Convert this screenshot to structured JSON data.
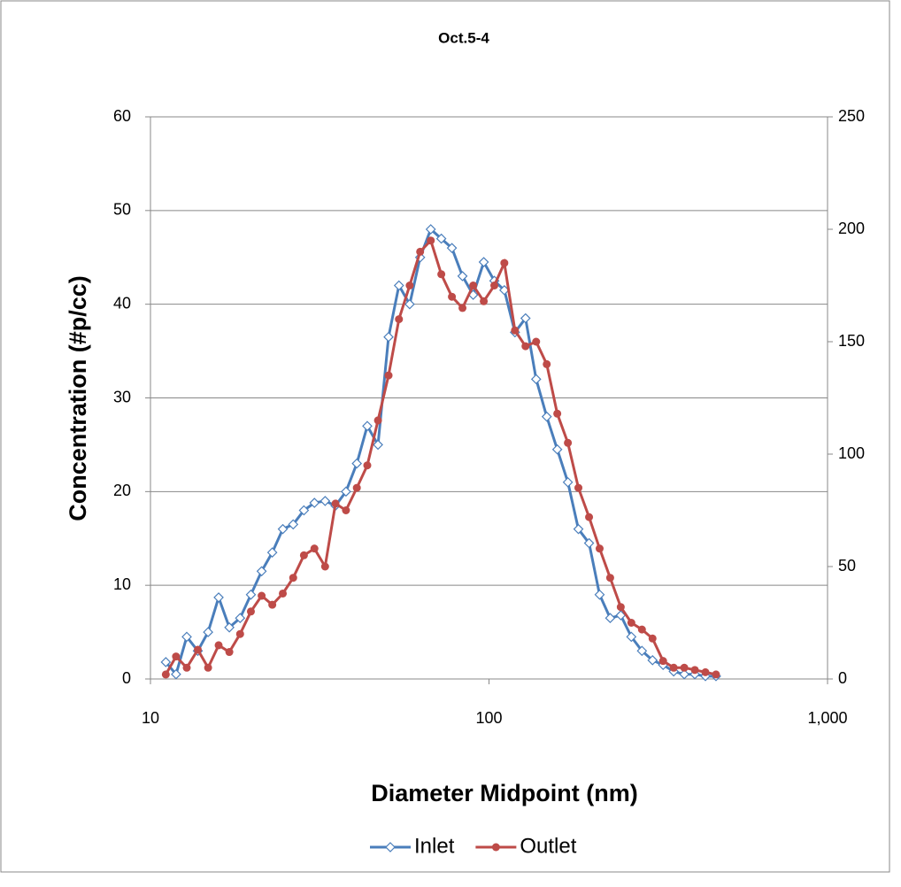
{
  "chart_data": {
    "type": "line",
    "title": "Oct.5-4",
    "x_label": "Diameter Midpoint (nm)",
    "y_label": "Concentration (#p/cc)",
    "x": [
      11.1,
      11.9,
      12.8,
      13.8,
      14.8,
      15.9,
      17.1,
      18.4,
      19.8,
      21.3,
      22.9,
      24.6,
      26.4,
      28.4,
      30.5,
      32.8,
      35.2,
      37.8,
      40.7,
      43.7,
      47.0,
      50.5,
      54.2,
      58.3,
      62.6,
      67.3,
      72.3,
      77.7,
      83.5,
      89.8,
      96.5,
      103.7,
      111.0,
      119.3,
      128.2,
      137.8,
      148.1,
      159.1,
      171.0,
      183.7,
      197.5,
      212.2,
      228.0,
      245.0,
      263.3,
      283.0,
      304.1,
      326.8,
      351.2,
      377.4,
      405.5,
      435.8,
      468.3
    ],
    "series": [
      {
        "name": "Inlet",
        "color": "#4a7ebb",
        "marker": "diamond",
        "axis": "y",
        "values": [
          1.8,
          0.5,
          4.5,
          3.0,
          5.0,
          8.7,
          5.5,
          6.5,
          9.0,
          11.5,
          13.5,
          16.0,
          16.5,
          18.0,
          18.8,
          19.0,
          18.5,
          20.0,
          23.0,
          27.0,
          25.0,
          36.5,
          42.0,
          40.0,
          45.0,
          48.0,
          47.0,
          46.0,
          43.0,
          41.0,
          44.5,
          42.5,
          41.5,
          37.0,
          38.5,
          32.0,
          28.0,
          24.5,
          21.0,
          16.0,
          14.5,
          9.0,
          6.5,
          6.8,
          4.5,
          3.0,
          2.0,
          1.5,
          0.8,
          0.5,
          0.5,
          0.3,
          0.3
        ]
      },
      {
        "name": "Outlet",
        "color": "#be4b48",
        "marker": "circle",
        "axis": "y2",
        "values": [
          2,
          10,
          5,
          13,
          5,
          15,
          12,
          20,
          30,
          37,
          33,
          38,
          45,
          55,
          58,
          50,
          78,
          75,
          85,
          95,
          115,
          135,
          160,
          175,
          190,
          195,
          180,
          170,
          165,
          175,
          168,
          175,
          185,
          155,
          148,
          150,
          140,
          118,
          105,
          85,
          72,
          58,
          45,
          32,
          25,
          22,
          18,
          8,
          5,
          5,
          4,
          3,
          2
        ]
      }
    ],
    "xlim": [
      10,
      1000
    ],
    "x_log": true,
    "xticks": [
      10,
      100,
      {
        "value": 1000,
        "label": "1,000"
      }
    ],
    "ylim": [
      0,
      60
    ],
    "yticks": [
      0,
      10,
      20,
      30,
      40,
      50,
      60
    ],
    "y2lim": [
      0,
      250
    ],
    "y2ticks": [
      0,
      50,
      100,
      150,
      200,
      250
    ],
    "grid": true,
    "legend": "bottom"
  }
}
